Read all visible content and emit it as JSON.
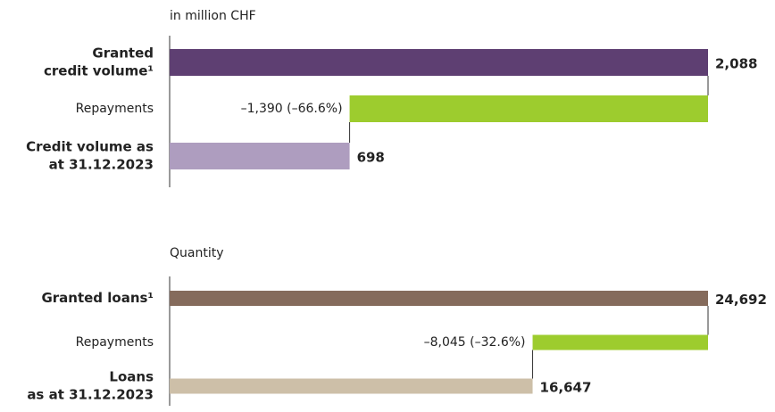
{
  "chart_data": [
    {
      "type": "waterfall",
      "subtitle": "in million CHF",
      "categories": [
        [
          "Granted",
          "credit volume¹"
        ],
        [
          "Repayments"
        ],
        [
          "Credit volume as",
          "at 31.12.2023"
        ]
      ],
      "values": [
        2088,
        -1390,
        698
      ],
      "measure": [
        "absolute",
        "relative",
        "total"
      ],
      "value_labels": [
        "2,088",
        "–1,390 (–66.6%)",
        "698"
      ],
      "colors": [
        "#5e3f72",
        "#9dcc2e",
        "#ae9dbf"
      ],
      "xlim": [
        0,
        2088
      ]
    },
    {
      "type": "waterfall",
      "subtitle": "Quantity",
      "categories": [
        [
          "Granted loans¹"
        ],
        [
          "Repayments"
        ],
        [
          "Loans",
          "as at 31.12.2023"
        ]
      ],
      "values": [
        24692,
        -8045,
        16647
      ],
      "measure": [
        "absolute",
        "relative",
        "total"
      ],
      "value_labels": [
        "24,692",
        "–8,045 (–32.6%)",
        "16,647"
      ],
      "colors": [
        "#856b5c",
        "#9dcc2e",
        "#cdbfa8"
      ],
      "xlim": [
        0,
        24692
      ]
    }
  ]
}
